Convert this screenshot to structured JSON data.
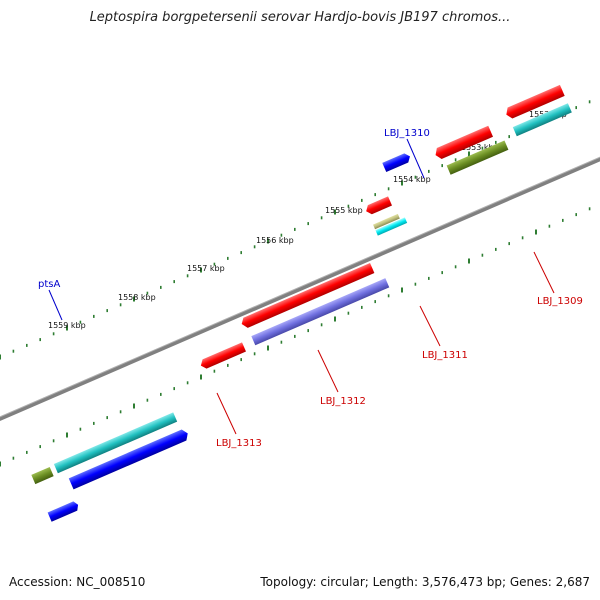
{
  "title": "Leptospira borgpetersenii serovar Hardjo-bovis JB197 chromos...",
  "footer": {
    "accession": "Accession: NC_008510",
    "summary": "Topology: circular; Length: 3,576,473 bp; Genes: 2,687"
  },
  "scale": {
    "ticks": [
      "1552 kbp",
      "1553 kbp",
      "1554 kbp",
      "1555 kbp",
      "1556 kbp",
      "1557 kbp",
      "1558 kbp",
      "1559 kbp"
    ]
  },
  "colors": {
    "backbone": "#808080",
    "forward_cds": "#ff0000",
    "reverse_cds": "#0000ff",
    "teal": "#20c0c0",
    "purple": "#7070e0",
    "olive": "#6b8e23",
    "tick_green": "#2e7d32",
    "label_red": "#cc0000",
    "label_blue": "#0000cc"
  },
  "genes": [
    {
      "label": "LBJ_1310",
      "color": "blue"
    },
    {
      "label": "ptsA",
      "color": "blue"
    },
    {
      "label": "LBJ_1309",
      "color": "red"
    },
    {
      "label": "LBJ_1311",
      "color": "red"
    },
    {
      "label": "LBJ_1312",
      "color": "red"
    },
    {
      "label": "LBJ_1313",
      "color": "red"
    }
  ]
}
